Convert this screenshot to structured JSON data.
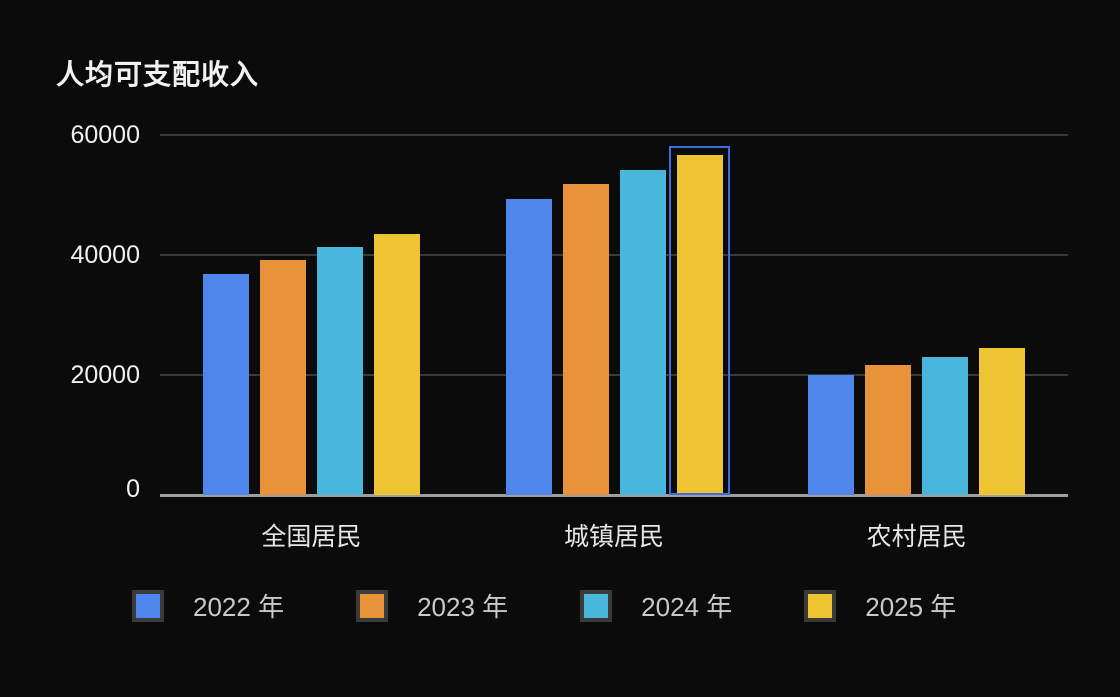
{
  "chart_data": {
    "type": "bar",
    "title": "人均可支配收入",
    "categories": [
      "全国居民",
      "城镇居民",
      "农村居民"
    ],
    "series": [
      {
        "name": "2022 年",
        "color": "#4e86ec",
        "values": [
          36883,
          49283,
          20133
        ]
      },
      {
        "name": "2023 年",
        "color": "#e8923a",
        "values": [
          39218,
          51821,
          21691
        ]
      },
      {
        "name": "2024 年",
        "color": "#49b6dc",
        "values": [
          41314,
          54188,
          23119
        ]
      },
      {
        "name": "2025 年",
        "color": "#eec433",
        "values": [
          43500,
          56700,
          24500
        ]
      }
    ],
    "ylim": [
      0,
      60000
    ],
    "yticks": [
      0,
      20000,
      40000,
      60000
    ],
    "ytick_labels": [
      "0",
      "20000",
      "40000",
      "60000"
    ],
    "grid": true,
    "legend_position": "bottom",
    "highlight": {
      "category": "城镇居民",
      "series": "2025 年",
      "outline_color": "#3d6de2"
    }
  },
  "theme": {
    "background": "#0b0b0b",
    "gridline_color": "#3a3a3a",
    "axis_line_color": "#9e9e9e",
    "tick_label_color": "#f0f0f0",
    "category_label_color": "#e6e6e6",
    "legend_text_color": "#c9c9c9",
    "legend_swatch_border": "#3b3b3b",
    "title_color": "#f2f2f2"
  }
}
